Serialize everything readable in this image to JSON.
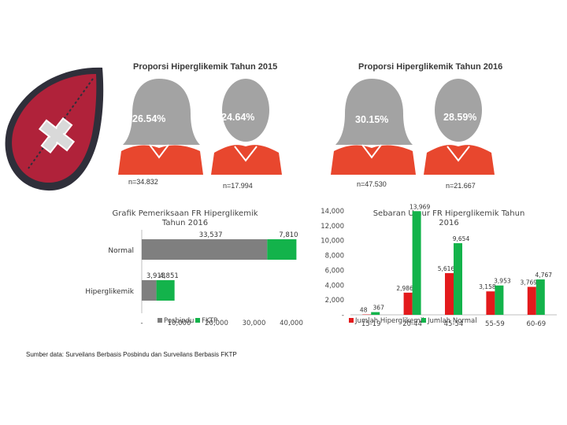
{
  "icon": "blood-drop-with-plus-icon",
  "colors": {
    "drop_red": "#b0223a",
    "drop_dark": "#2f2f3a",
    "person_gray": "#a3a3a3",
    "shirt_red": "#e8472e",
    "hyper_bar_red": "#e31a1c",
    "normal_bar_green": "#13b34b",
    "posbindu_gray": "#7f7f7f"
  },
  "proportion_panels": [
    {
      "title": "Proporsi Hiperglikemik Tahun 2015",
      "figures": [
        {
          "percent": "26.54%",
          "n": "n=34.832"
        },
        {
          "percent": "24.64%",
          "n": "n=17.994"
        }
      ]
    },
    {
      "title": "Proporsi Hiperglikemik Tahun 2016",
      "figures": [
        {
          "percent": "30.15%",
          "n": "n=47.530"
        },
        {
          "percent": "28.59%",
          "n": "n=21.667"
        }
      ]
    }
  ],
  "source_note": "Sumber data: Surveilans Berbasis Posbindu dan Surveilans Berbasis FKTP",
  "chart_data": [
    {
      "type": "bar",
      "orientation": "horizontal",
      "stacked": true,
      "title_lines": [
        "Grafik Pemeriksaan FR Hiperglikemik",
        "Tahun 2016"
      ],
      "categories": [
        "Normal",
        "Hiperglikemik"
      ],
      "series": [
        {
          "name": "Posbindu",
          "values": [
            33537,
            3918
          ]
        },
        {
          "name": "FKTP",
          "values": [
            7810,
            4851
          ]
        }
      ],
      "value_labels": [
        [
          "33,537",
          "7,810"
        ],
        [
          "3,918",
          "4,851"
        ]
      ],
      "xlim": [
        0,
        40000
      ],
      "x_ticks": [
        "-",
        "10,000",
        "20,000",
        "30,000",
        "40,000"
      ],
      "legend_position": "bottom"
    },
    {
      "type": "bar",
      "title_lines": [
        "Sebaran Umur FR Hiperglikemik Tahun",
        "2016"
      ],
      "categories": [
        "15-19",
        "20-44",
        "45-54",
        "55-59",
        "60-69"
      ],
      "series": [
        {
          "name": "Jumlah Hiperglikemik",
          "values": [
            48,
            2986,
            5616,
            3158,
            3769
          ]
        },
        {
          "name": "Jumlah Normal",
          "values": [
            367,
            13969,
            9654,
            3953,
            4767
          ]
        }
      ],
      "value_labels": [
        [
          "48",
          "2,986",
          "5,616",
          "3,158",
          "3,769"
        ],
        [
          "367",
          "13,969",
          "9,654",
          "3,953",
          "4,767"
        ]
      ],
      "ylim": [
        0,
        14000
      ],
      "y_ticks": [
        "-",
        "2,000",
        "4,000",
        "6,000",
        "8,000",
        "10,000",
        "12,000",
        "14,000"
      ],
      "legend_position": "bottom"
    }
  ]
}
